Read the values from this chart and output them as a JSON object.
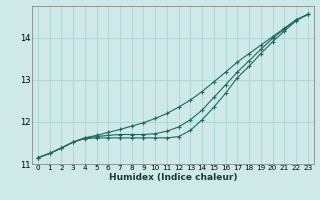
{
  "xlabel": "Humidex (Indice chaleur)",
  "bg_color": "#ceeae6",
  "grid_color": "#aad4d0",
  "line_color": "#1a6b5a",
  "xlim": [
    -0.5,
    23.5
  ],
  "ylim": [
    11.0,
    14.75
  ],
  "xticks": [
    0,
    1,
    2,
    3,
    4,
    5,
    6,
    7,
    8,
    9,
    10,
    11,
    12,
    13,
    14,
    15,
    16,
    17,
    18,
    19,
    20,
    21,
    22,
    23
  ],
  "yticks": [
    11,
    12,
    13,
    14
  ],
  "line_upper_x": [
    0,
    1,
    2,
    3,
    4,
    5,
    6,
    7,
    8,
    9,
    10,
    11,
    12,
    13,
    14,
    15,
    16,
    17,
    18,
    19,
    20,
    21,
    22,
    23
  ],
  "line_upper_y": [
    11.15,
    11.25,
    11.38,
    11.52,
    11.62,
    11.68,
    11.75,
    11.82,
    11.9,
    11.98,
    12.08,
    12.2,
    12.35,
    12.52,
    12.72,
    12.95,
    13.18,
    13.42,
    13.62,
    13.82,
    14.02,
    14.22,
    14.42,
    14.55
  ],
  "line_lower_x": [
    0,
    1,
    2,
    3,
    4,
    5,
    6,
    7,
    8,
    9,
    10,
    11,
    12,
    13,
    14,
    15,
    16,
    17,
    18,
    19,
    20,
    21,
    22,
    23
  ],
  "line_lower_y": [
    11.15,
    11.25,
    11.38,
    11.52,
    11.6,
    11.62,
    11.62,
    11.62,
    11.62,
    11.62,
    11.62,
    11.62,
    11.65,
    11.8,
    12.05,
    12.35,
    12.68,
    13.05,
    13.32,
    13.62,
    13.9,
    14.15,
    14.4,
    14.55
  ],
  "line_mid_x": [
    0,
    1,
    2,
    3,
    4,
    5,
    6,
    7,
    8,
    9,
    10,
    11,
    12,
    13,
    14,
    15,
    16,
    17,
    18,
    19,
    20,
    21,
    22,
    23
  ],
  "line_mid_y": [
    11.15,
    11.25,
    11.38,
    11.52,
    11.62,
    11.65,
    11.68,
    11.7,
    11.7,
    11.7,
    11.72,
    11.78,
    11.88,
    12.05,
    12.28,
    12.58,
    12.88,
    13.18,
    13.45,
    13.72,
    13.98,
    14.2,
    14.42,
    14.55
  ]
}
